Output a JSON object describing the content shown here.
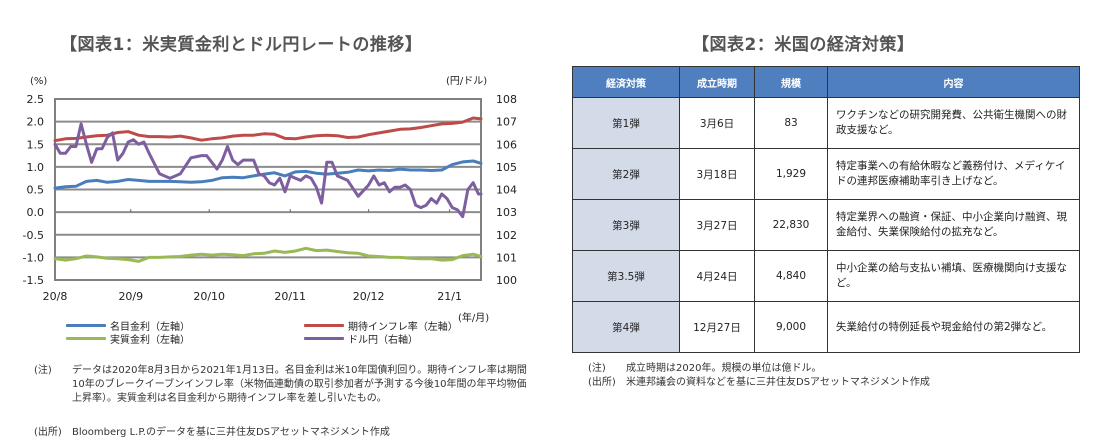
{
  "figure1": {
    "title": "【図表1：米実質金利とドル円レートの推移】",
    "notes": [
      {
        "label": "(注)",
        "text": "データは2020年8月3日から2021年1月13日。名目金利は米10年国債利回り。期待インフレ率は期間10年のブレークイーブンインフレ率（米物価連動債の取引参加者が予測する今後10年間の年平均物価上昇率）。実質金利は名目金利から期待インフレ率を差し引いたもの。"
      },
      {
        "label": "(出所)",
        "text": "Bloomberg L.P.のデータを基に三井住友DSアセットマネジメント作成"
      }
    ]
  },
  "figure2": {
    "title": "【図表2：米国の経済対策】",
    "headers": [
      "経済対策",
      "成立時期",
      "規模",
      "内容"
    ],
    "rows": [
      {
        "stage": "第1弾",
        "date": "3月6日",
        "scale": "83",
        "desc": "ワクチンなどの研究開発費、公共衛生機関への財政支援など。"
      },
      {
        "stage": "第2弾",
        "date": "3月18日",
        "scale": "1,929",
        "desc": "特定事業への有給休暇など義務付け、メディケイドの連邦医療補助率引き上げなど。"
      },
      {
        "stage": "第3弾",
        "date": "3月27日",
        "scale": "22,830",
        "desc": "特定業界への融資・保証、中小企業向け融資、現金給付、失業保険給付の拡充など。"
      },
      {
        "stage": "第3.5弾",
        "date": "4月24日",
        "scale": "4,840",
        "desc": "中小企業の給与支払い補填、医療機関向け支援など。"
      },
      {
        "stage": "第4弾",
        "date": "12月27日",
        "scale": "9,000",
        "desc": "失業給付の特例延長や現金給付の第2弾など。"
      }
    ],
    "notes": [
      {
        "label": "(注)",
        "text": "成立時期は2020年。規模の単位は億ドル。"
      },
      {
        "label": "(出所)",
        "text": "米連邦議会の資料などを基に三井住友DSアセットマネジメント作成"
      }
    ]
  },
  "chart_data": {
    "type": "line",
    "title": "【図表1：米実質金利とドル円レートの推移】",
    "xlabel": "(年/月)",
    "ylabel_left": "(%)",
    "ylabel_right": "(円/ドル)",
    "x_ticks": [
      "20/8",
      "20/9",
      "20/10",
      "20/11",
      "20/12",
      "21/1"
    ],
    "x_range_days": [
      0,
      163
    ],
    "x_tick_days": [
      0,
      29,
      59,
      90,
      120,
      151
    ],
    "ylim_left": [
      -1.5,
      2.5
    ],
    "yticks_left": [
      "2.5",
      "2.0",
      "1.5",
      "1.0",
      "0.5",
      "0.0",
      "-0.5",
      "-1.0",
      "-1.5"
    ],
    "ylim_right": [
      100,
      108
    ],
    "yticks_right": [
      "108",
      "107",
      "106",
      "105",
      "104",
      "103",
      "102",
      "101",
      "100"
    ],
    "grid": true,
    "legend_position": "bottom",
    "colors": {
      "nominal": "#4a7ebb",
      "inflation": "#be4b48",
      "real": "#98b954",
      "usdjpy": "#7d5fa0"
    },
    "series": [
      {
        "key": "nominal",
        "name": "名目金利（左軸）",
        "axis": "left",
        "days": [
          0,
          4,
          8,
          12,
          16,
          20,
          24,
          28,
          32,
          36,
          40,
          44,
          48,
          52,
          56,
          60,
          64,
          68,
          72,
          76,
          80,
          84,
          88,
          92,
          96,
          100,
          104,
          108,
          112,
          116,
          120,
          124,
          128,
          132,
          136,
          140,
          144,
          148,
          152,
          156,
          160,
          163
        ],
        "values": [
          0.53,
          0.56,
          0.57,
          0.68,
          0.7,
          0.66,
          0.68,
          0.72,
          0.7,
          0.68,
          0.68,
          0.68,
          0.67,
          0.66,
          0.67,
          0.7,
          0.76,
          0.77,
          0.76,
          0.8,
          0.84,
          0.87,
          0.8,
          0.89,
          0.9,
          0.86,
          0.84,
          0.86,
          0.88,
          0.93,
          0.91,
          0.93,
          0.92,
          0.95,
          0.93,
          0.93,
          0.92,
          0.93,
          1.05,
          1.11,
          1.13,
          1.08
        ]
      },
      {
        "key": "inflation",
        "name": "期待インフレ率（左軸）",
        "axis": "left",
        "days": [
          0,
          4,
          8,
          12,
          16,
          20,
          24,
          28,
          32,
          36,
          40,
          44,
          48,
          52,
          56,
          60,
          64,
          68,
          72,
          76,
          80,
          84,
          88,
          92,
          96,
          100,
          104,
          108,
          112,
          116,
          120,
          124,
          128,
          132,
          136,
          140,
          144,
          148,
          152,
          156,
          160,
          163
        ],
        "values": [
          1.58,
          1.62,
          1.63,
          1.66,
          1.69,
          1.7,
          1.76,
          1.78,
          1.7,
          1.67,
          1.67,
          1.66,
          1.68,
          1.64,
          1.59,
          1.62,
          1.64,
          1.68,
          1.7,
          1.7,
          1.73,
          1.72,
          1.63,
          1.62,
          1.66,
          1.69,
          1.7,
          1.69,
          1.65,
          1.66,
          1.71,
          1.75,
          1.79,
          1.83,
          1.84,
          1.87,
          1.91,
          1.95,
          1.96,
          1.99,
          2.08,
          2.06
        ]
      },
      {
        "key": "real",
        "name": "実質金利（左軸）",
        "axis": "left",
        "days": [
          0,
          4,
          8,
          12,
          16,
          20,
          24,
          28,
          32,
          36,
          40,
          44,
          48,
          52,
          56,
          60,
          64,
          68,
          72,
          76,
          80,
          84,
          88,
          92,
          96,
          100,
          104,
          108,
          112,
          116,
          120,
          124,
          128,
          132,
          136,
          140,
          144,
          148,
          152,
          156,
          160,
          163
        ],
        "values": [
          -1.03,
          -1.06,
          -1.03,
          -0.97,
          -0.99,
          -1.02,
          -1.03,
          -1.05,
          -1.09,
          -1.0,
          -1.0,
          -0.99,
          -0.98,
          -0.95,
          -0.93,
          -0.95,
          -0.93,
          -0.94,
          -0.96,
          -0.92,
          -0.91,
          -0.86,
          -0.89,
          -0.86,
          -0.8,
          -0.85,
          -0.84,
          -0.87,
          -0.9,
          -0.91,
          -0.97,
          -0.98,
          -1.0,
          -1.0,
          -1.02,
          -1.03,
          -1.03,
          -1.06,
          -1.05,
          -0.96,
          -0.93,
          -0.98
        ]
      },
      {
        "key": "usdjpy",
        "name": "ドル円（右軸）",
        "axis": "right",
        "days": [
          0,
          2,
          4,
          6,
          8,
          10,
          12,
          14,
          16,
          18,
          20,
          22,
          24,
          26,
          28,
          30,
          32,
          34,
          36,
          40,
          44,
          48,
          52,
          56,
          58,
          60,
          62,
          64,
          66,
          68,
          70,
          72,
          74,
          76,
          78,
          80,
          82,
          84,
          86,
          88,
          90,
          92,
          94,
          96,
          98,
          100,
          102,
          104,
          106,
          108,
          112,
          116,
          120,
          122,
          124,
          126,
          128,
          130,
          132,
          134,
          136,
          138,
          140,
          142,
          144,
          146,
          148,
          150,
          152,
          154,
          156,
          158,
          160,
          162,
          163
        ],
        "values": [
          106.0,
          105.6,
          105.6,
          105.9,
          105.9,
          106.9,
          106.0,
          105.2,
          105.8,
          105.8,
          106.3,
          106.5,
          105.3,
          105.6,
          106.1,
          106.2,
          106.0,
          106.1,
          105.6,
          104.7,
          104.5,
          104.7,
          105.4,
          105.5,
          105.5,
          105.2,
          104.9,
          105.3,
          105.9,
          105.3,
          105.1,
          105.3,
          105.3,
          105.3,
          104.7,
          104.6,
          104.3,
          104.2,
          104.5,
          103.9,
          104.6,
          104.5,
          104.4,
          104.6,
          104.5,
          104.1,
          103.4,
          105.2,
          105.2,
          104.6,
          104.4,
          103.7,
          104.2,
          104.6,
          104.2,
          104.3,
          103.9,
          104.1,
          104.1,
          104.2,
          104.0,
          103.3,
          103.2,
          103.3,
          103.6,
          103.4,
          103.8,
          103.6,
          103.2,
          103.1,
          102.8,
          104.0,
          104.3,
          103.8,
          103.8
        ]
      }
    ]
  }
}
